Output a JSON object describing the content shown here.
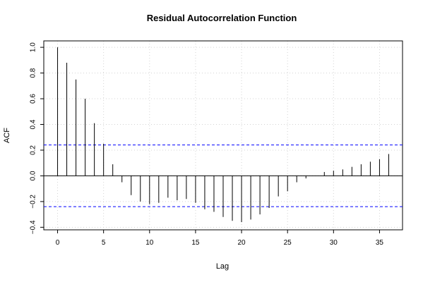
{
  "chart_data": {
    "type": "bar",
    "title": "Residual Autocorrelation Function",
    "xlabel": "Lag",
    "ylabel": "ACF",
    "x": [
      0,
      1,
      2,
      3,
      4,
      5,
      6,
      7,
      8,
      9,
      10,
      11,
      12,
      13,
      14,
      15,
      16,
      17,
      18,
      19,
      20,
      21,
      22,
      23,
      24,
      25,
      26,
      27,
      28,
      29,
      30,
      31,
      32,
      33,
      34,
      35,
      36
    ],
    "values": [
      1.0,
      0.88,
      0.75,
      0.6,
      0.41,
      0.25,
      0.09,
      -0.05,
      -0.15,
      -0.2,
      -0.22,
      -0.21,
      -0.17,
      -0.19,
      -0.18,
      -0.21,
      -0.26,
      -0.28,
      -0.32,
      -0.35,
      -0.36,
      -0.34,
      -0.3,
      -0.25,
      -0.16,
      -0.12,
      -0.05,
      -0.02,
      0.0,
      0.03,
      0.04,
      0.05,
      0.07,
      0.09,
      0.11,
      0.13,
      0.17
    ],
    "xlim": [
      -1.5,
      37.5
    ],
    "ylim": [
      -0.42,
      1.05
    ],
    "xticks": [
      "0",
      "5",
      "10",
      "15",
      "20",
      "25",
      "30",
      "35"
    ],
    "yticks": [
      "−0.4",
      "−0.2",
      "0.0",
      "0.2",
      "0.4",
      "0.6",
      "0.8",
      "1.0"
    ],
    "confidence_bound": 0.24,
    "grid": true,
    "colors": {
      "spike": "#000000",
      "bound": "#0000ff",
      "grid": "#d3d3d3",
      "zero": "#000000"
    }
  }
}
